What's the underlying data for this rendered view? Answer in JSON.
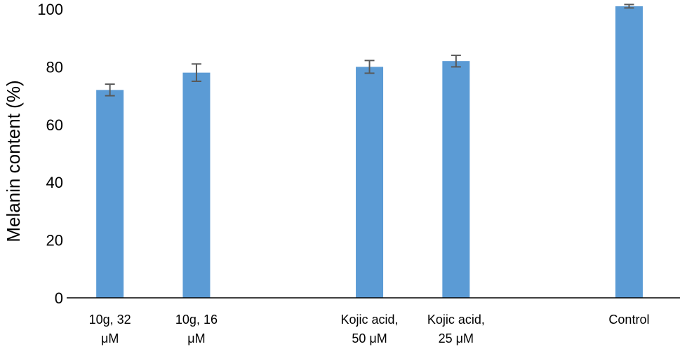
{
  "chart_data": {
    "type": "bar",
    "title": "",
    "xlabel": "",
    "ylabel": "Melanin content  (%)",
    "ylim": [
      0,
      100
    ],
    "yticks": [
      "0",
      "20",
      "40",
      "60",
      "80",
      "100"
    ],
    "categories": [
      [
        "10g, 32",
        "μM"
      ],
      [
        "10g, 16",
        "μM"
      ],
      [
        "",
        ""
      ],
      [
        "Kojic acid,",
        "50 μM"
      ],
      [
        "Kojic acid,",
        "25 μM"
      ],
      [
        "",
        ""
      ],
      [
        "Control",
        ""
      ]
    ],
    "values": [
      72,
      78,
      null,
      80,
      82,
      null,
      101
    ],
    "errors": [
      2,
      3,
      null,
      2.2,
      2,
      null,
      0.6
    ],
    "grid": false,
    "legend": "none",
    "colors": {
      "bar": "#5B9BD5",
      "error_bar": "#595959",
      "axis": "#000000"
    }
  }
}
